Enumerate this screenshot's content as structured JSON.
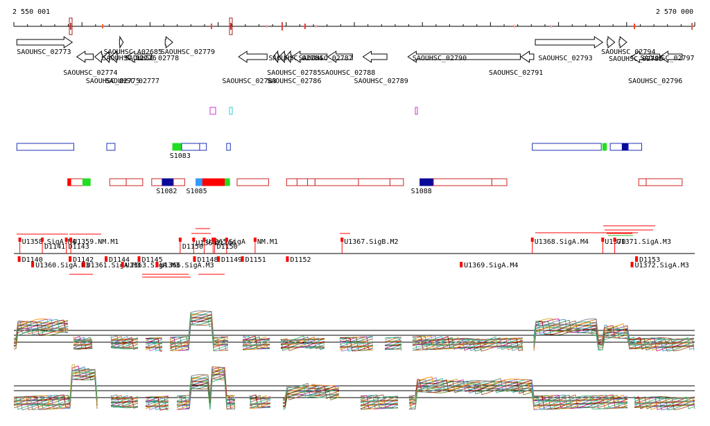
{
  "axis": {
    "start_label": "2 550 001",
    "end_label": "2 570 000",
    "start": 2550001,
    "end": 2570000
  },
  "genes": [
    {
      "name": "SAOUHSC_02773",
      "start": 2550200,
      "end": 2553900,
      "strand": "+",
      "row": 0
    },
    {
      "name": "SAOUHSC_02774",
      "start": 2554200,
      "end": 2555300,
      "strand": "-",
      "row": 1
    },
    {
      "name": "SAOUHSC_02775",
      "start": 2555400,
      "end": 2555900,
      "strand": "-",
      "row": 2
    },
    {
      "name": "SAOUHSC_A02685",
      "start": 2556000,
      "end": 2556400,
      "strand": "-",
      "row": 1
    },
    {
      "name": "SAOUHSC_02776",
      "start": 2556450,
      "end": 2556900,
      "strand": "-",
      "row": 1
    },
    {
      "name": "SAOUHSC_02777",
      "start": 2557050,
      "end": 2557300,
      "strand": "+",
      "row": 0
    },
    {
      "name": "SAOUHSC_02778",
      "start": 2557500,
      "end": 2559200,
      "strand": "-",
      "row": 1
    },
    {
      "name": "SAOUHSC_02779",
      "start": 2560100,
      "end": 2560600,
      "strand": "+",
      "row": 0
    },
    {
      "name": "SAOUHSC_02783",
      "start": 2565000,
      "end": 2566900,
      "strand": "-",
      "row": 1
    },
    {
      "name": "SAOUHSC_02784",
      "start": 2567300,
      "end": 2567650,
      "strand": "-",
      "row": 1
    },
    {
      "name": "SAOUHSC_02785",
      "start": 2567700,
      "end": 2568100,
      "strand": "-",
      "row": 1
    },
    {
      "name": "SAOUHSC_02786",
      "start": 2568150,
      "end": 2568500,
      "strand": "-",
      "row": 1
    },
    {
      "name": "SAOUHSC_02787",
      "start": 2568550,
      "end": 2570900,
      "strand": "-",
      "row": 1
    },
    {
      "name": "SAOUHSC_02788",
      "start": 2570950,
      "end": 2572600,
      "strand": "-",
      "row": 1
    },
    {
      "name": "SAOUHSC_02789",
      "start": 2573300,
      "end": 2574900,
      "strand": "-",
      "row": 1
    },
    {
      "name": "SAOUHSC_02790",
      "start": 2576300,
      "end": 2583800,
      "strand": "-",
      "row": 1
    },
    {
      "name": "SAOUHSC_02791",
      "start": 2583850,
      "end": 2584700,
      "strand": "-",
      "row": 1
    },
    {
      "name": "SAOUHSC_02793",
      "start": 2584800,
      "end": 2589300,
      "strand": "+",
      "row": 0
    },
    {
      "name": "SAOUHSC_02794",
      "start": 2589600,
      "end": 2590100,
      "strand": "+",
      "row": 0
    },
    {
      "name": "SAOUHSC_02795",
      "start": 2590400,
      "end": 2590900,
      "strand": "+",
      "row": 0
    },
    {
      "name": "SAOUHSC_02796",
      "start": 2591200,
      "end": 2593100,
      "strand": "-",
      "row": 1
    },
    {
      "name": "SAOUHSC_02797",
      "start": 2593100,
      "end": 2594600,
      "strand": "-",
      "row": 1
    }
  ],
  "upper_labels": [
    {
      "text": "SAOUHSC_02773",
      "x": 2550200,
      "line": 0
    },
    {
      "text": "SAOUHSC_A02685",
      "x": 2556000,
      "line": 0
    },
    {
      "text": "SAOUHSC_02779",
      "x": 2559800,
      "line": 0
    },
    {
      "text": "SAOUHSC_02776",
      "x": 2555900,
      "line": 1
    },
    {
      "text": "SAOUHSC_02778",
      "x": 2557400,
      "line": 1
    },
    {
      "text": "SAOUHSC_02774",
      "x": 2553300,
      "line": 2
    },
    {
      "text": "SAOUHSC_02775",
      "x": 2554800,
      "line": 3
    },
    {
      "text": "SAOUHSC_02777",
      "x": 2556100,
      "line": 3
    },
    {
      "text": "SAOUHSC_02784",
      "x": 2567000,
      "line": 1
    },
    {
      "text": "SAOUHSC_02787",
      "x": 2569000,
      "line": 1
    },
    {
      "text": "SAOUHSC_02785",
      "x": 2566900,
      "line": 2
    },
    {
      "text": "SAOUHSC_02788",
      "x": 2570500,
      "line": 2
    },
    {
      "text": "SAOUHSC_02783",
      "x": 2563900,
      "line": 3
    },
    {
      "text": "SAOUHSC_02786",
      "x": 2566900,
      "line": 3
    },
    {
      "text": "SAOUHSC_02789",
      "x": 2572700,
      "line": 3
    },
    {
      "text": "SAOUHSC_02790",
      "x": 2576600,
      "line": 1
    },
    {
      "text": "SAOUHSC_02791",
      "x": 2581700,
      "line": 2
    },
    {
      "text": "SAOUHSC_02793",
      "x": 2585000,
      "line": 1
    },
    {
      "text": "SAOUHSC_02794",
      "x": 2589200,
      "line": 0
    },
    {
      "text": "SAOUHSC_02795",
      "x": 2589700,
      "line": 0.5
    },
    {
      "text": "SAOUHSC_02797",
      "x": 2591800,
      "line": 1
    },
    {
      "text": "SAOUHSC_02796",
      "x": 2591000,
      "line": 3
    }
  ],
  "blue_boxes": [
    {
      "start": 2550200,
      "end": 2554000,
      "fill": ""
    },
    {
      "start": 2556200,
      "end": 2556750,
      "fill": ""
    },
    {
      "start": 2560600,
      "end": 2561200,
      "fill": "#22dd22"
    },
    {
      "start": 2561200,
      "end": 2562400,
      "fill": ""
    },
    {
      "start": 2562400,
      "end": 2562850,
      "fill": ""
    },
    {
      "start": 2564200,
      "end": 2564450,
      "fill": ""
    },
    {
      "start": 2584600,
      "end": 2589200,
      "fill": ""
    },
    {
      "start": 2589300,
      "end": 2589550,
      "fill": "#22dd22"
    },
    {
      "start": 2589800,
      "end": 2590600,
      "fill": ""
    },
    {
      "start": 2590600,
      "end": 2591000,
      "fill": "#0a0a9a"
    },
    {
      "start": 2591000,
      "end": 2591900,
      "fill": ""
    }
  ],
  "blue_labels": [
    {
      "text": "S1083",
      "x": 2560400
    }
  ],
  "red_boxes": [
    {
      "start": 2553600,
      "end": 2554800,
      "fill": ""
    },
    {
      "start": 2553600,
      "end": 2553800,
      "fill": "#ff0000"
    },
    {
      "start": 2554600,
      "end": 2555100,
      "fill": "#22dd22"
    },
    {
      "start": 2556400,
      "end": 2557500,
      "fill": ""
    },
    {
      "start": 2557500,
      "end": 2558600,
      "fill": ""
    },
    {
      "start": 2559200,
      "end": 2559900,
      "fill": ""
    },
    {
      "start": 2559900,
      "end": 2560650,
      "fill": "#0a0a9a"
    },
    {
      "start": 2560650,
      "end": 2561400,
      "fill": ""
    },
    {
      "start": 2562150,
      "end": 2562600,
      "fill": "#3399ff"
    },
    {
      "start": 2562600,
      "end": 2564100,
      "fill": "#ff0000"
    },
    {
      "start": 2564100,
      "end": 2564400,
      "fill": "#22dd22"
    },
    {
      "start": 2564900,
      "end": 2567000,
      "fill": ""
    },
    {
      "start": 2568200,
      "end": 2568900,
      "fill": ""
    },
    {
      "start": 2568900,
      "end": 2569600,
      "fill": ""
    },
    {
      "start": 2569600,
      "end": 2570100,
      "fill": ""
    },
    {
      "start": 2570100,
      "end": 2573000,
      "fill": ""
    },
    {
      "start": 2573000,
      "end": 2575100,
      "fill": ""
    },
    {
      "start": 2575100,
      "end": 2576000,
      "fill": ""
    },
    {
      "start": 2577100,
      "end": 2578000,
      "fill": "#0a0a9a"
    },
    {
      "start": 2578000,
      "end": 2581900,
      "fill": ""
    },
    {
      "start": 2581900,
      "end": 2582900,
      "fill": ""
    },
    {
      "start": 2591700,
      "end": 2592200,
      "fill": ""
    },
    {
      "start": 2592200,
      "end": 2594600,
      "fill": ""
    }
  ],
  "red_labels": [
    {
      "text": "S1082",
      "x": 2559500
    },
    {
      "text": "S1085",
      "x": 2561500
    },
    {
      "text": "S1088",
      "x": 2576500
    }
  ],
  "above_labels": [
    {
      "text": "U1358.SigA.M4",
      "x": 2550400,
      "dy": 0
    },
    {
      "text": "D1141",
      "x": 2551900,
      "dy": 7
    },
    {
      "text": "U1359.NM.M1",
      "x": 2553800,
      "dy": 0
    },
    {
      "text": "D1143",
      "x": 2553500,
      "dy": 7
    },
    {
      "text": "D1150",
      "x": 2561100,
      "dy": 7
    },
    {
      "text": "U1364",
      "x": 2562000,
      "dy": 2
    },
    {
      "text": "U1365",
      "x": 2562700,
      "dy": 0
    },
    {
      "text": "U1366",
      "x": 2563300,
      "dy": 2
    },
    {
      "text": "SigA",
      "x": 2564200,
      "dy": 0
    },
    {
      "text": "NM.M1",
      "x": 2566100,
      "dy": 0
    },
    {
      "text": "D1150",
      "x": 2563400,
      "dy": 7
    },
    {
      "text": "U1367.SigB.M2",
      "x": 2571900,
      "dy": 0
    },
    {
      "text": "U1368.SigA.M4",
      "x": 2584600,
      "dy": 0
    },
    {
      "text": "U1370",
      "x": 2589300,
      "dy": 0
    },
    {
      "text": "U1371.SigA.M3",
      "x": 2590100,
      "dy": 0
    }
  ],
  "below_labels": [
    {
      "text": "D1140",
      "x": 2550400,
      "line": 0
    },
    {
      "text": "D1142",
      "x": 2553800,
      "line": 0
    },
    {
      "text": "D1144",
      "x": 2556200,
      "line": 0
    },
    {
      "text": "D1145",
      "x": 2558400,
      "line": 0
    },
    {
      "text": "D1148",
      "x": 2562100,
      "line": 0
    },
    {
      "text": "D1149",
      "x": 2563700,
      "line": 0
    },
    {
      "text": "D1151",
      "x": 2565300,
      "line": 0
    },
    {
      "text": "D1152",
      "x": 2568300,
      "line": 0
    },
    {
      "text": "D1153",
      "x": 2591600,
      "line": 0
    },
    {
      "text": "U1360.SigA.M3",
      "x": 2551300,
      "line": 1
    },
    {
      "text": "U1361.SigA.M3",
      "x": 2554700,
      "line": 1
    },
    {
      "text": "U1363.SigA.M3",
      "x": 2557300,
      "line": 1
    },
    {
      "text": "U1366.SigA.M3",
      "x": 2559600,
      "line": 1
    },
    {
      "text": "U1369.SigA.M4",
      "x": 2579900,
      "line": 1
    },
    {
      "text": "U1372.SigA.M3",
      "x": 2591300,
      "line": 1
    }
  ]
}
